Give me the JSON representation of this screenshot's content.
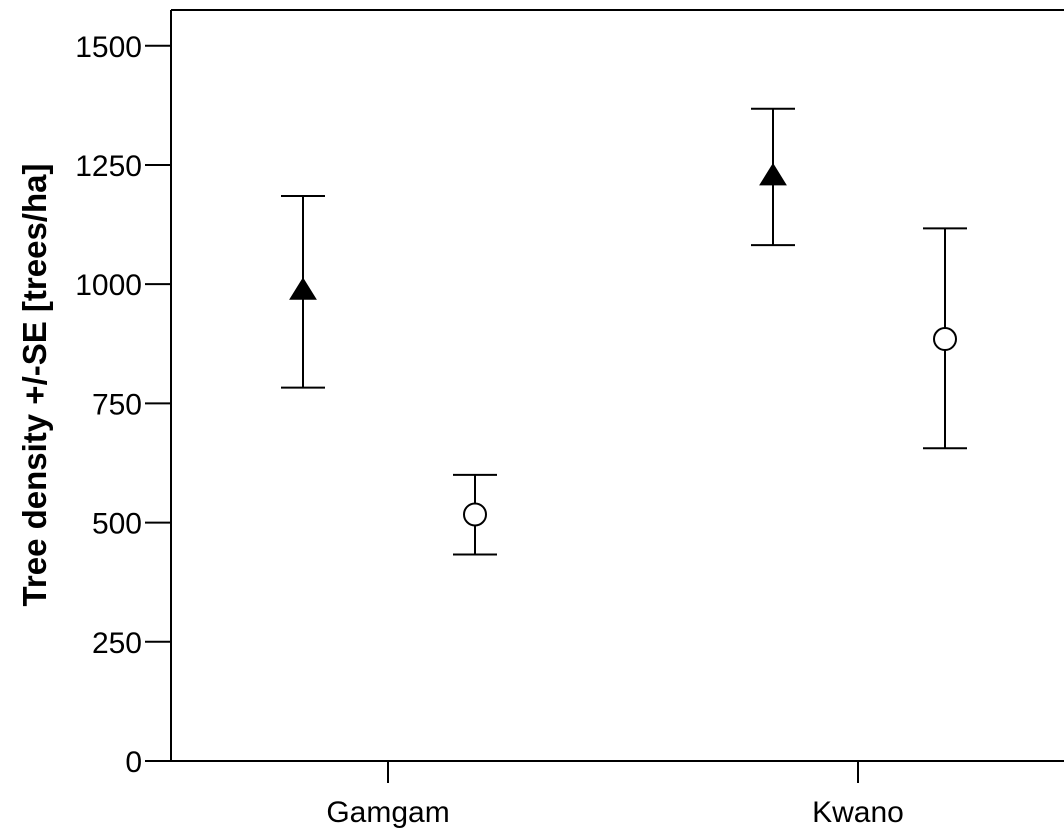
{
  "chart_data": {
    "type": "scatter",
    "title": "",
    "ylabel": "Tree density +/-SE [trees/ha]",
    "xlabel": "",
    "categories": [
      "Gamgam",
      "Kwano"
    ],
    "ylim": [
      0,
      1575
    ],
    "yticks": [
      0,
      250,
      500,
      750,
      1000,
      1250,
      1500
    ],
    "grid": false,
    "series": [
      {
        "marker": "filled-triangle",
        "points": [
          {
            "category": "Gamgam",
            "mean": 985,
            "low": 783,
            "high": 1185
          },
          {
            "category": "Kwano",
            "mean": 1225,
            "low": 1082,
            "high": 1368
          }
        ]
      },
      {
        "marker": "open-circle",
        "points": [
          {
            "category": "Gamgam",
            "mean": 517,
            "low": 433,
            "high": 600
          },
          {
            "category": "Kwano",
            "mean": 885,
            "low": 656,
            "high": 1117
          }
        ]
      }
    ]
  }
}
